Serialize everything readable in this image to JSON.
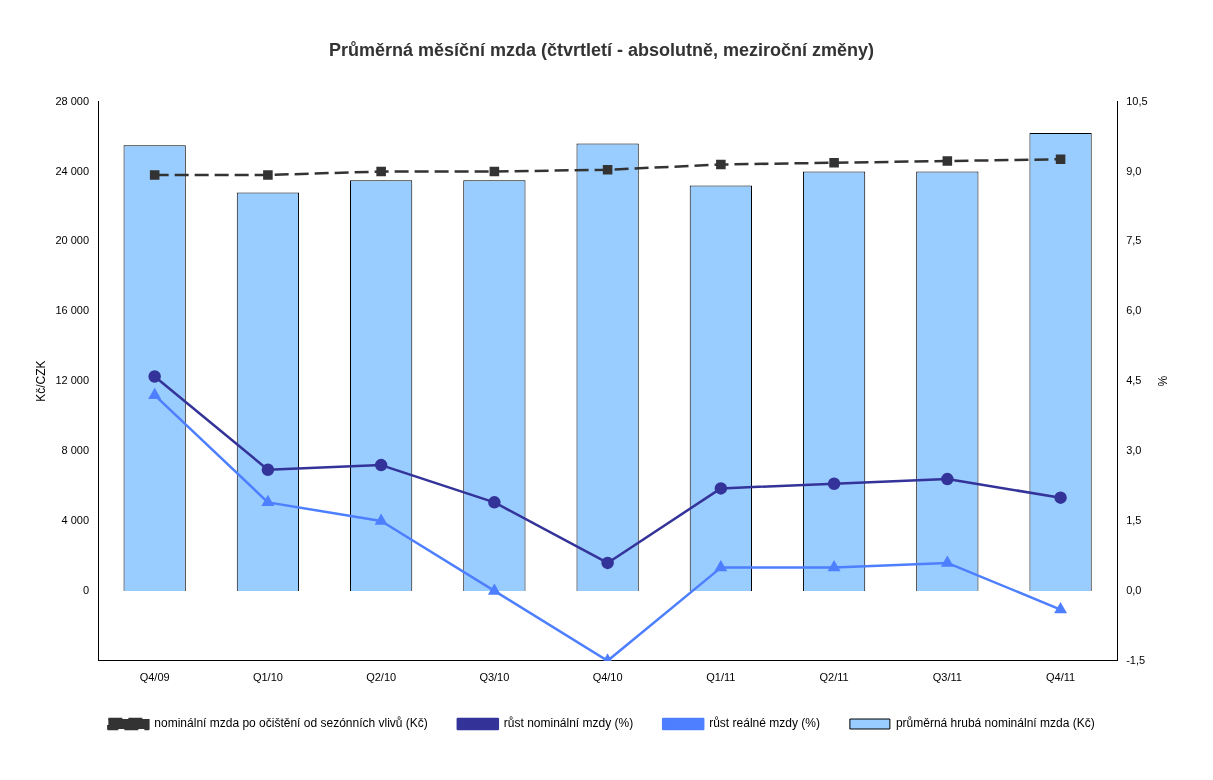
{
  "chart_data": {
    "type": "bar",
    "title": "Průměrná měsíční mzda (čtvrtletí - absolutně, meziroční změny)",
    "ylabel": "Kč/CZK",
    "y2label": "%",
    "categories": [
      "Q4/09",
      "Q1/10",
      "Q2/10",
      "Q3/10",
      "Q4/10",
      "Q1/11",
      "Q2/11",
      "Q3/11",
      "Q4/11"
    ],
    "series": [
      {
        "name": "průměrná hrubá nominální mzda (Kč)",
        "color": "#99ccff",
        "values": [
          25500,
          22800,
          23500,
          23500,
          25600,
          23200,
          24000,
          24000,
          26200
        ]
      },
      {
        "name": "nominální mzda po očištění od sezónních vlivů (Kč)",
        "type": "line",
        "color": "#333333",
        "marker": "square",
        "line_style": "dashed",
        "values": [
          23800,
          23800,
          24000,
          24000,
          24100,
          24400,
          24500,
          24600,
          24700
        ]
      },
      {
        "name": "růst nominální mzdy (%)",
        "type": "line",
        "axis": "y2",
        "color": "#333399",
        "marker": "circle",
        "line_style": "solid",
        "values": [
          4.6,
          2.6,
          2.7,
          1.9,
          0.6,
          2.2,
          2.3,
          2.4,
          2.0
        ]
      },
      {
        "name": "růst reálné mzdy (%)",
        "type": "line",
        "axis": "y2",
        "color": "#4d7fff",
        "marker": "triangle",
        "line_style": "solid",
        "values": [
          4.2,
          1.9,
          1.5,
          0.0,
          -1.5,
          0.5,
          0.5,
          0.6,
          -0.4
        ]
      }
    ],
    "ylim": [
      -4000,
      28000
    ],
    "yticks": [
      {
        "value": 0,
        "label": "0"
      },
      {
        "value": 4000,
        "label": "4 000"
      },
      {
        "value": 8000,
        "label": "8 000"
      },
      {
        "value": 12000,
        "label": "12 000"
      },
      {
        "value": 16000,
        "label": "16 000"
      },
      {
        "value": 20000,
        "label": "20 000"
      },
      {
        "value": 24000,
        "label": "24 000"
      },
      {
        "value": 28000,
        "label": "28 000"
      }
    ],
    "y2lim": [
      -1.5,
      10.5
    ],
    "y2ticks": [
      {
        "value": -1.5,
        "label": "-1,5"
      },
      {
        "value": 0,
        "label": "0,0"
      },
      {
        "value": 1.5,
        "label": "1,5"
      },
      {
        "value": 3,
        "label": "3,0"
      },
      {
        "value": 4.5,
        "label": "4,5"
      },
      {
        "value": 6,
        "label": "6,0"
      },
      {
        "value": 7.5,
        "label": "7,5"
      },
      {
        "value": 9,
        "label": "9,0"
      },
      {
        "value": 10.5,
        "label": "10,5"
      }
    ],
    "grid": false,
    "legend": "bottom"
  }
}
